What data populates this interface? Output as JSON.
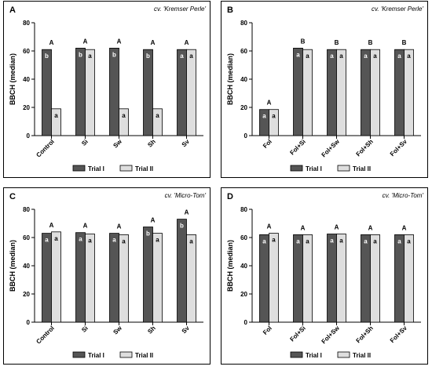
{
  "colors": {
    "trial1": "#555555",
    "trial2": "#dedede",
    "frame": "#000000"
  },
  "chart_data": [
    {
      "type": "bar",
      "panel": "A",
      "subtitle": "cv. 'Kremser Perle'",
      "ylabel": "BBCH (median)",
      "ylim": [
        0,
        80
      ],
      "yticks": [
        0,
        20,
        40,
        60,
        80
      ],
      "legend": "bottom-center",
      "categories": [
        "Control",
        "Si",
        "Sw",
        "Sh",
        "Sv"
      ],
      "series": [
        {
          "name": "Trial I",
          "values": [
            61,
            62,
            62,
            61,
            61
          ],
          "labels": [
            "b",
            "b",
            "b",
            "b",
            "a"
          ]
        },
        {
          "name": "Trial II",
          "values": [
            19,
            61,
            19,
            19,
            61
          ],
          "labels": [
            "a",
            "a",
            "a",
            "a",
            "a"
          ]
        }
      ],
      "top_labels": [
        "A",
        "A",
        "A",
        "A",
        "A"
      ]
    },
    {
      "type": "bar",
      "panel": "B",
      "subtitle": "cv. 'Kremser Perle'",
      "ylabel": "BBCH (median)",
      "ylim": [
        0,
        80
      ],
      "yticks": [
        0,
        20,
        40,
        60,
        80
      ],
      "legend": "bottom-center",
      "categories": [
        "Fol",
        "Fol+Si",
        "Fol+Sw",
        "Fol+Sh",
        "Fol+Sv"
      ],
      "series": [
        {
          "name": "Trial I",
          "values": [
            18.5,
            62,
            61,
            61,
            61
          ],
          "labels": [
            "a",
            "a",
            "a",
            "a",
            "a"
          ]
        },
        {
          "name": "Trial II",
          "values": [
            18.5,
            61,
            61,
            61,
            61
          ],
          "labels": [
            "a",
            "a",
            "a",
            "a",
            "a"
          ]
        }
      ],
      "top_labels": [
        "A",
        "B",
        "B",
        "B",
        "B"
      ]
    },
    {
      "type": "bar",
      "panel": "C",
      "subtitle": "cv. 'Micro-Tom'",
      "ylabel": "BBCH (median)",
      "ylim": [
        0,
        80
      ],
      "yticks": [
        0,
        20,
        40,
        60,
        80
      ],
      "legend": "bottom-center",
      "categories": [
        "Control",
        "Si",
        "Sw",
        "Sh",
        "Sv"
      ],
      "series": [
        {
          "name": "Trial I",
          "values": [
            63,
            63.5,
            63,
            67.5,
            73
          ],
          "labels": [
            "a",
            "a",
            "a",
            "b",
            "b"
          ]
        },
        {
          "name": "Trial II",
          "values": [
            64,
            62.5,
            62,
            63,
            62
          ],
          "labels": [
            "a",
            "a",
            "a",
            "a",
            "a"
          ]
        }
      ],
      "top_labels": [
        "A",
        "A",
        "A",
        "A",
        "A"
      ]
    },
    {
      "type": "bar",
      "panel": "D",
      "subtitle": "cv. 'Micro-Tom'",
      "ylabel": "BBCH (median)",
      "ylim": [
        0,
        80
      ],
      "yticks": [
        0,
        20,
        40,
        60,
        80
      ],
      "legend": "bottom-center",
      "categories": [
        "Fol",
        "Fol+Si",
        "Fol+Sw",
        "Fol+Sh",
        "Fol+Sv"
      ],
      "series": [
        {
          "name": "Trial I",
          "values": [
            62,
            62,
            62.5,
            62,
            62
          ],
          "labels": [
            "a",
            "a",
            "a",
            "a",
            "a"
          ]
        },
        {
          "name": "Trial II",
          "values": [
            63,
            62,
            62.5,
            62,
            62
          ],
          "labels": [
            "a",
            "a",
            "a",
            "a",
            "a"
          ]
        }
      ],
      "top_labels": [
        "A",
        "A",
        "A",
        "A",
        "A"
      ]
    }
  ]
}
